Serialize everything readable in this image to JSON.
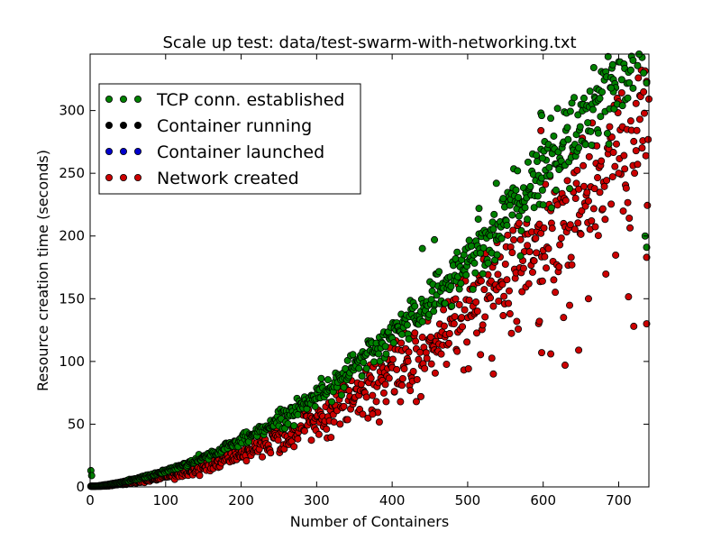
{
  "chart_data": {
    "type": "scatter",
    "title": "Scale up test: data/test-swarm-with-networking.txt",
    "xlabel": "Number of Containers",
    "ylabel": "Resource creation time (seconds)",
    "xlim": [
      0,
      740
    ],
    "ylim": [
      0,
      345
    ],
    "xticks": [
      0,
      100,
      200,
      300,
      400,
      500,
      600,
      700
    ],
    "yticks": [
      0,
      50,
      100,
      150,
      200,
      250,
      300
    ],
    "grid": false,
    "legend_position": "top-left",
    "series": [
      {
        "name": "TCP conn. established",
        "color": "#008000",
        "model": {
          "kind": "quadratic",
          "a": 0.00058,
          "b": 0.07,
          "c": 0
        },
        "spread": 0.06,
        "count": 740,
        "outliers": [
          {
            "x": 597,
            "y": 298
          },
          {
            "x": 598,
            "y": 296
          },
          {
            "x": 599,
            "y": 262
          },
          {
            "x": 566,
            "y": 252
          },
          {
            "x": 538,
            "y": 242
          },
          {
            "x": 621,
            "y": 253
          },
          {
            "x": 673,
            "y": 282
          },
          {
            "x": 693,
            "y": 315
          },
          {
            "x": 727,
            "y": 345
          },
          {
            "x": 712,
            "y": 310
          },
          {
            "x": 737,
            "y": 322
          },
          {
            "x": 735,
            "y": 200
          },
          {
            "x": 737,
            "y": 191
          },
          {
            "x": 690,
            "y": 318
          },
          {
            "x": 719,
            "y": 340
          },
          {
            "x": 733,
            "y": 330
          },
          {
            "x": 456,
            "y": 197
          },
          {
            "x": 440,
            "y": 190
          },
          {
            "x": 515,
            "y": 222
          },
          {
            "x": 1,
            "y": 13
          },
          {
            "x": 2,
            "y": 9
          }
        ]
      },
      {
        "name": "Container running",
        "color": "#000000",
        "model": {
          "kind": "quadratic",
          "a": 0.00058,
          "b": 0.07,
          "c": 0
        },
        "spread": 0.05,
        "count": 0,
        "outliers": []
      },
      {
        "name": "Container launched",
        "color": "#0000cc",
        "model": {
          "kind": "quadratic",
          "a": 0.00058,
          "b": 0.07,
          "c": 0
        },
        "spread": 0.05,
        "count": 0,
        "outliers": []
      },
      {
        "name": "Network created",
        "color": "#cc0000",
        "model": {
          "kind": "quadratic",
          "a": 0.00051,
          "b": 0.03,
          "c": 0
        },
        "spread": 0.12,
        "count": 740,
        "outliers": [
          {
            "x": 597,
            "y": 284
          },
          {
            "x": 720,
            "y": 128
          },
          {
            "x": 737,
            "y": 130
          },
          {
            "x": 723,
            "y": 268
          },
          {
            "x": 737,
            "y": 183
          },
          {
            "x": 534,
            "y": 90
          },
          {
            "x": 598,
            "y": 107
          },
          {
            "x": 610,
            "y": 106
          },
          {
            "x": 647,
            "y": 109
          },
          {
            "x": 629,
            "y": 97
          },
          {
            "x": 595,
            "y": 132
          },
          {
            "x": 627,
            "y": 135
          },
          {
            "x": 432,
            "y": 68
          },
          {
            "x": 392,
            "y": 68
          },
          {
            "x": 403,
            "y": 76
          },
          {
            "x": 413,
            "y": 81
          },
          {
            "x": 374,
            "y": 58
          },
          {
            "x": 728,
            "y": 293
          },
          {
            "x": 700,
            "y": 250
          },
          {
            "x": 660,
            "y": 150
          }
        ]
      }
    ]
  }
}
